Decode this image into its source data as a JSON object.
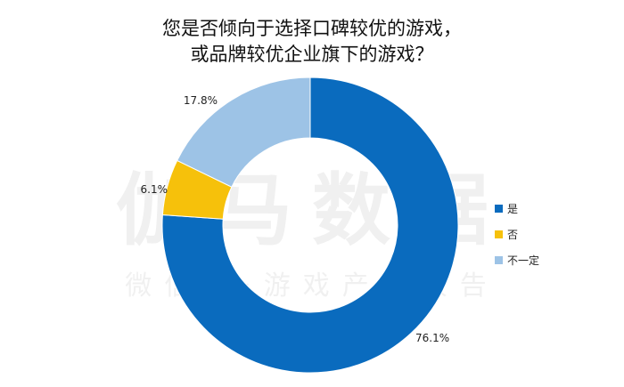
{
  "title_line1": "您是否倾向于选择口碑较优的游戏，",
  "title_line2": "或品牌较优企业旗下的游戏？",
  "watermark_main": "伽马数据",
  "watermark_sub": "微信号·游戏产业报告",
  "chart_data": {
    "type": "pie",
    "variant": "donut",
    "title": "您是否倾向于选择口碑较优的游戏，或品牌较优企业旗下的游戏？",
    "categories": [
      "是",
      "否",
      "不一定"
    ],
    "values": [
      76.1,
      6.1,
      17.8
    ],
    "labels": [
      "76.1%",
      "6.1%",
      "17.8%"
    ],
    "colors": [
      "#0A6BBE",
      "#F6C10B",
      "#9DC3E6"
    ],
    "legend": "right"
  }
}
